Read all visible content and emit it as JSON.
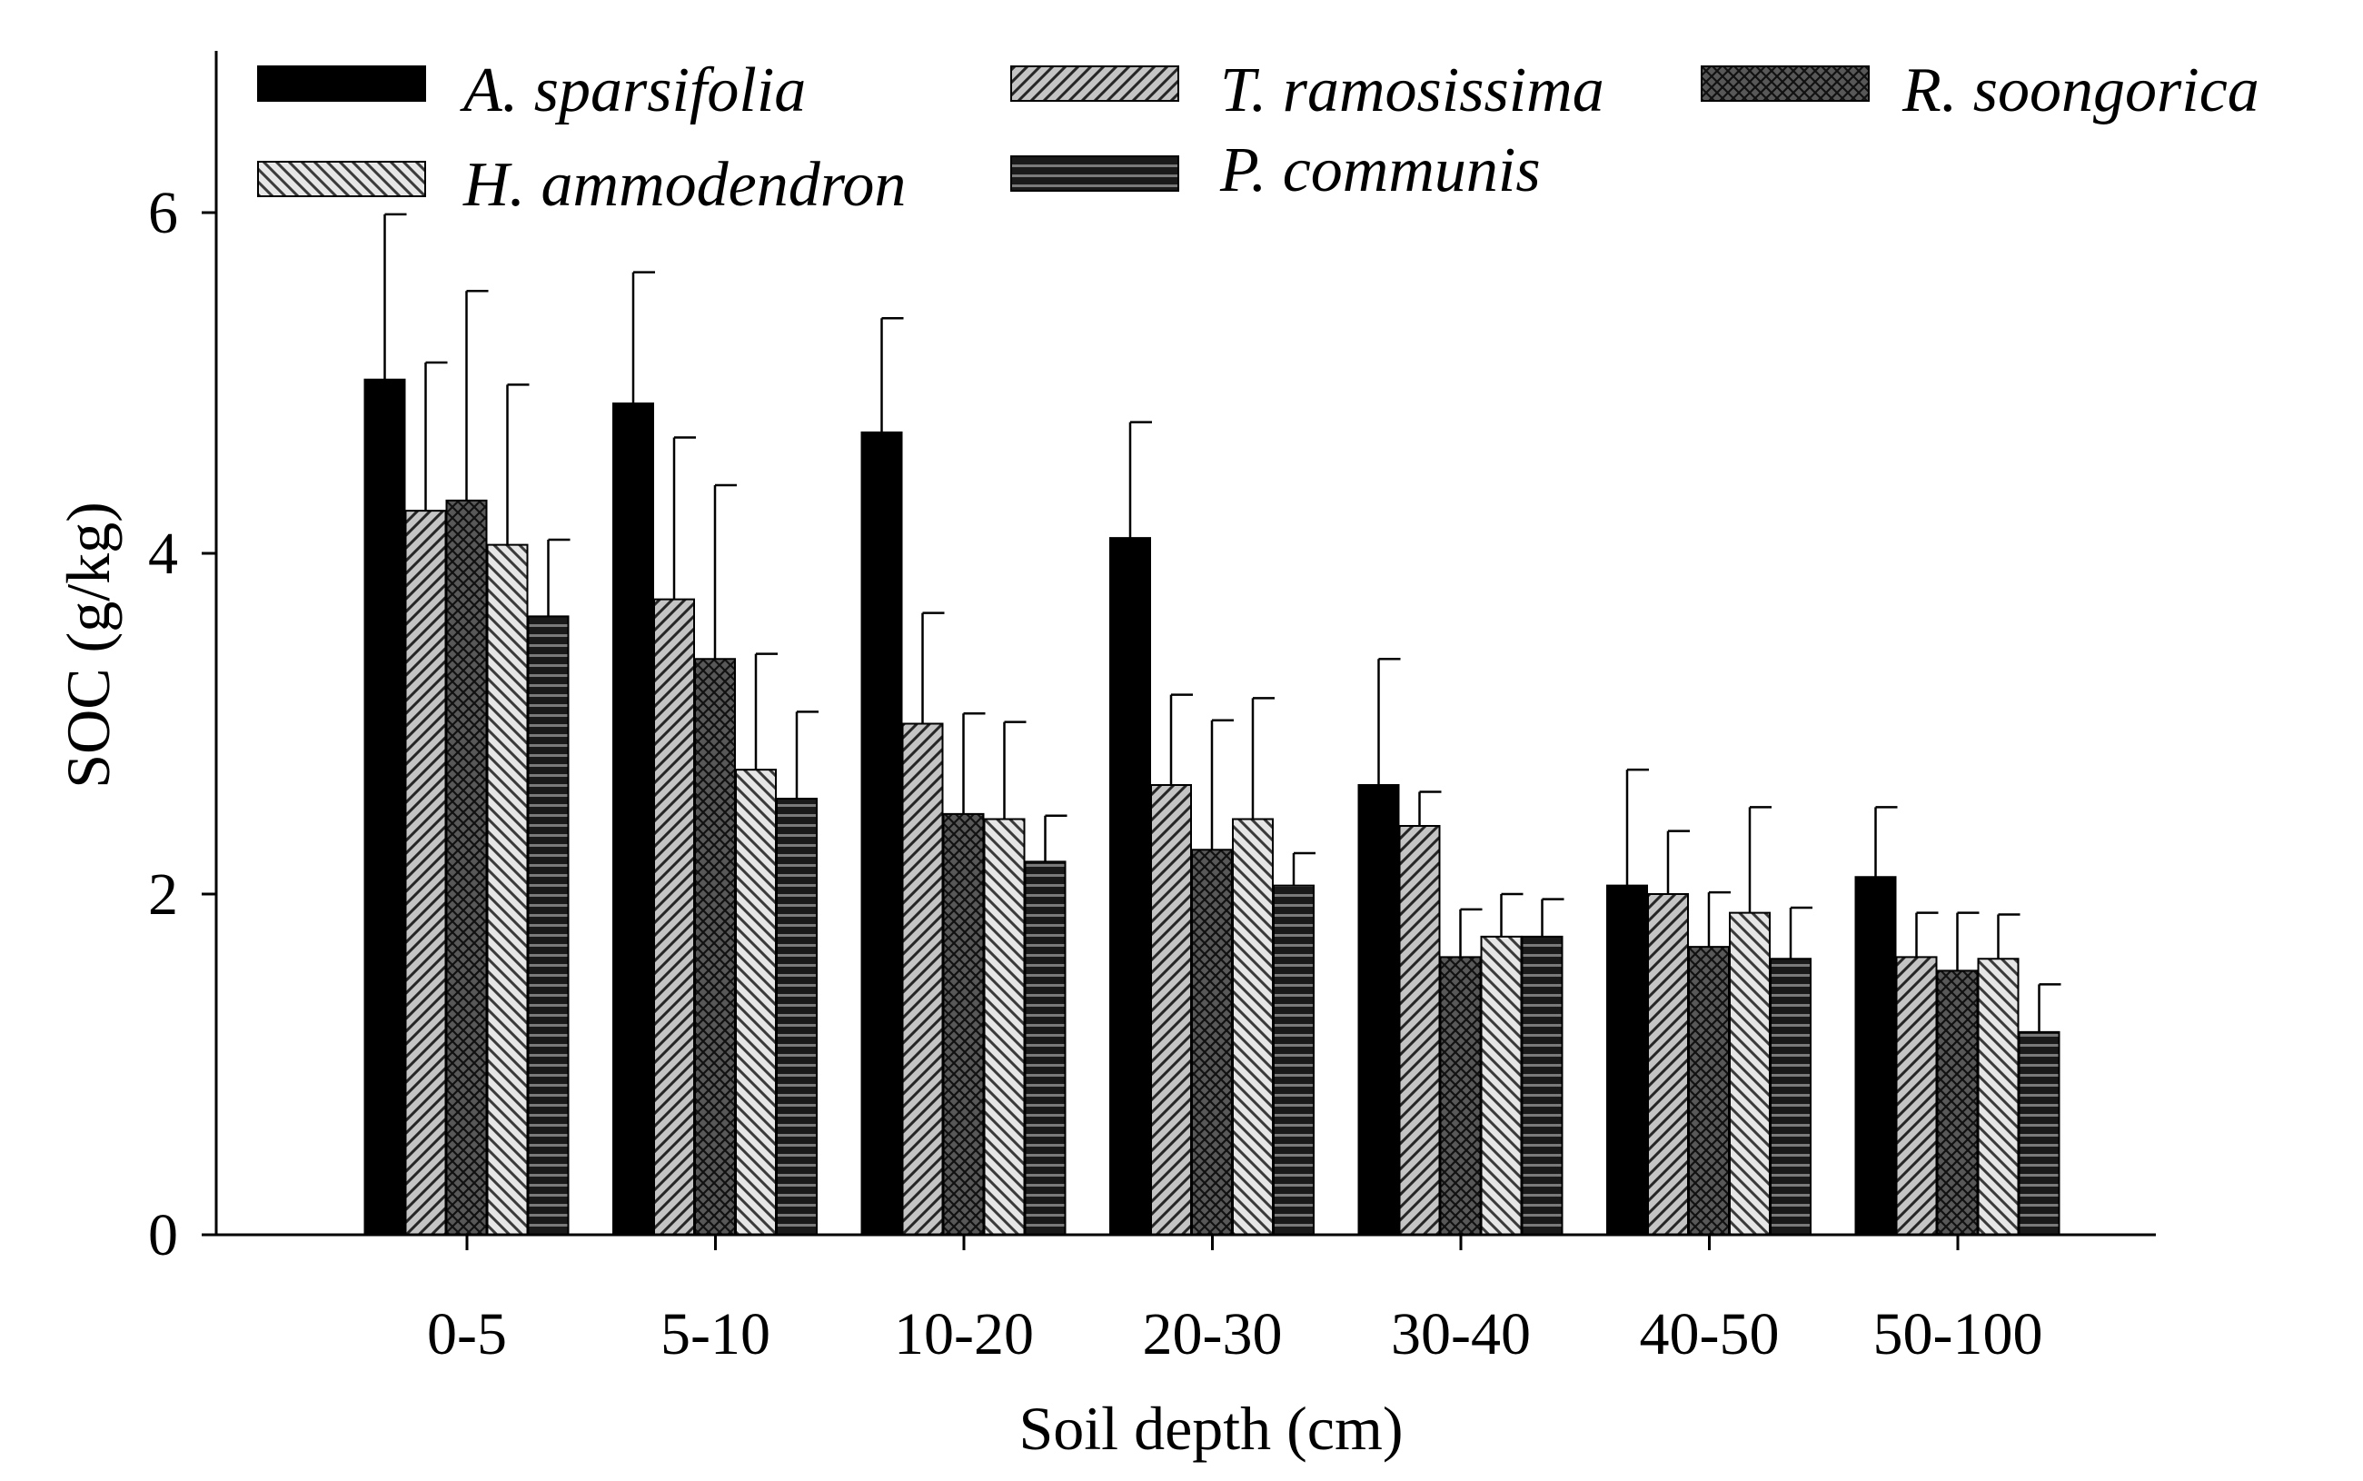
{
  "chart_data": {
    "type": "bar",
    "title": "",
    "xlabel": "Soil depth (cm)",
    "ylabel": "SOC (g/kg)",
    "ylim": [
      0,
      7
    ],
    "yticks": [
      0,
      2,
      4,
      6
    ],
    "categories": [
      "0-5",
      "5-10",
      "10-20",
      "20-30",
      "30-40",
      "40-50",
      "50-100"
    ],
    "legend_position": "top",
    "series": [
      {
        "name": "A. sparsifolia",
        "pattern": "solid-black",
        "color": "#000000",
        "values": [
          5.02,
          4.88,
          4.71,
          4.09,
          2.64,
          2.05,
          2.1
        ],
        "errors": [
          0.97,
          0.77,
          0.67,
          0.68,
          0.74,
          0.68,
          0.41
        ]
      },
      {
        "name": "T. ramosissima",
        "pattern": "diagonal-up-gray",
        "color": "#bdbdbd",
        "values": [
          4.25,
          3.73,
          3.0,
          2.64,
          2.4,
          2.0,
          1.63
        ],
        "errors": [
          0.87,
          0.95,
          0.65,
          0.53,
          0.2,
          0.37,
          0.26
        ]
      },
      {
        "name": "R. soongorica",
        "pattern": "crosshatch-dark",
        "color": "#555555",
        "values": [
          4.31,
          3.38,
          2.47,
          2.26,
          1.63,
          1.69,
          1.55
        ],
        "errors": [
          1.23,
          1.02,
          0.59,
          0.76,
          0.28,
          0.32,
          0.34
        ]
      },
      {
        "name": "H. ammodendron",
        "pattern": "diagonal-down-light",
        "color": "#d9d9d9",
        "values": [
          4.05,
          2.73,
          2.44,
          2.44,
          1.75,
          1.89,
          1.62
        ],
        "errors": [
          0.94,
          0.68,
          0.57,
          0.71,
          0.25,
          0.62,
          0.26
        ]
      },
      {
        "name": "P. communis",
        "pattern": "horizontal-dark",
        "color": "#404040",
        "values": [
          3.63,
          2.56,
          2.19,
          2.05,
          1.75,
          1.62,
          1.19
        ],
        "errors": [
          0.45,
          0.51,
          0.27,
          0.19,
          0.22,
          0.3,
          0.28
        ]
      }
    ]
  }
}
